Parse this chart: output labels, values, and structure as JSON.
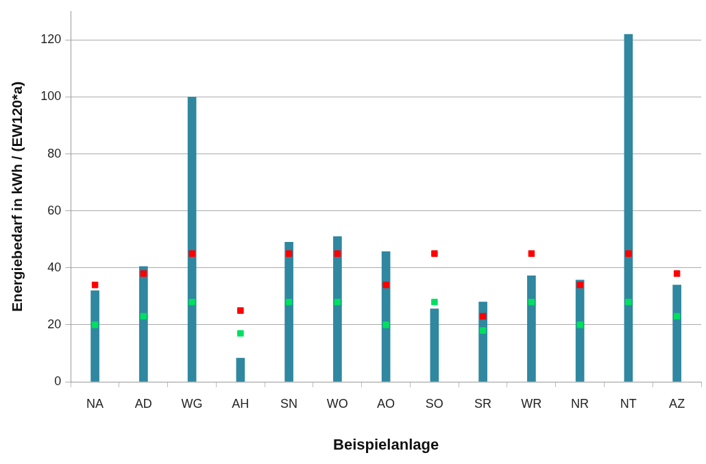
{
  "chart_data": {
    "type": "bar",
    "xlabel": "Beispielanlage",
    "ylabel": "Energiebedarf in kWh / (EW120*a)",
    "categories": [
      "NA",
      "AD",
      "WG",
      "AH",
      "SN",
      "WO",
      "AO",
      "SO",
      "SR",
      "WR",
      "NR",
      "NT",
      "AZ"
    ],
    "series": [
      {
        "color": "#2f87a0",
        "values": [
          32,
          40.5,
          100,
          8.3,
          49,
          51,
          45.7,
          25.6,
          28,
          37.2,
          35.7,
          122,
          34
        ]
      },
      {
        "type": "scatter",
        "marker": "square",
        "color": "#ff0000",
        "x": [
          "NA",
          "AD",
          "WG",
          "AH",
          "SN",
          "WO",
          "AO",
          "SO",
          "SR",
          "WR",
          "NR",
          "NT",
          "AZ"
        ],
        "values": [
          34,
          38,
          45,
          25,
          45,
          45,
          34,
          45,
          23,
          45,
          34,
          45,
          38
        ]
      },
      {
        "type": "scatter",
        "marker": "square",
        "color": "#00e060",
        "x": [
          "NA",
          "AD",
          "WG",
          "AH",
          "SN",
          "WO",
          "AO",
          "SO",
          "SR",
          "WR",
          "NR",
          "NT",
          "AZ"
        ],
        "values": [
          20,
          23,
          28,
          17,
          28,
          28,
          20,
          28,
          18,
          28,
          20,
          28,
          23
        ]
      }
    ],
    "ylim": [
      0,
      130
    ],
    "yticks": [
      0,
      20,
      40,
      60,
      80,
      100,
      120
    ],
    "grid": "y",
    "legend": false
  }
}
